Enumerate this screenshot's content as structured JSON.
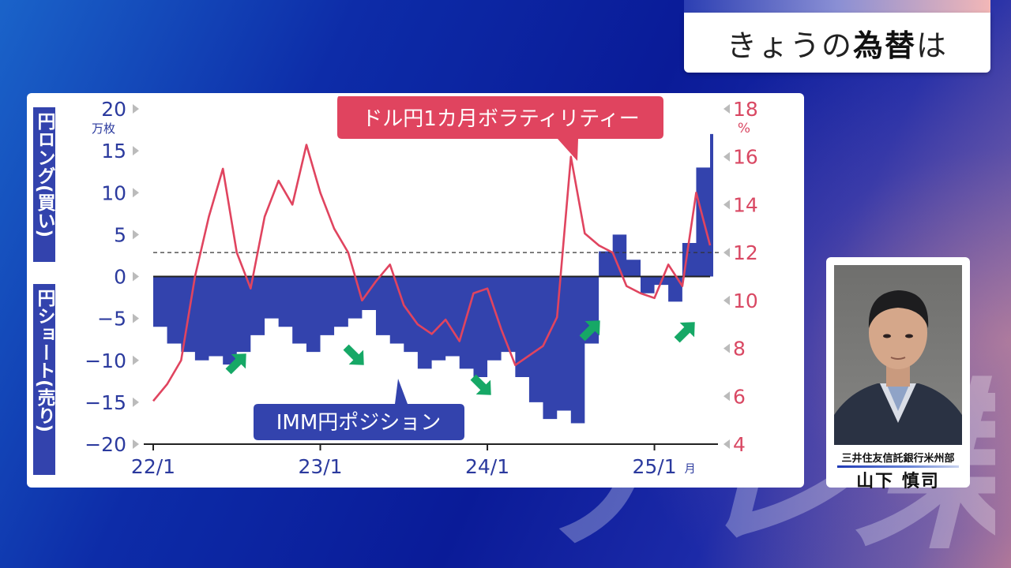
{
  "header": {
    "title_prefix": "きょうの",
    "title_bold": "為替",
    "title_suffix": "は"
  },
  "watermark": "テレ東",
  "speaker": {
    "affiliation": "三井住友信託銀行米州部",
    "name": "山下 慎司"
  },
  "colors": {
    "position_fill": "#3343ad",
    "volatility_line": "#e0445f",
    "long_short_label_bg": "#3343ad",
    "arrow": "#16a866"
  },
  "chart_data": {
    "type": "area",
    "x_ticks": [
      "22/1",
      "23/1",
      "24/1",
      "25/1"
    ],
    "x_unit": "月",
    "left_axis": {
      "ticks": [
        "20",
        "15",
        "10",
        "5",
        "0",
        "−5",
        "−10",
        "−15",
        "−20"
      ],
      "unit": "万枚",
      "range": [
        -20,
        20
      ],
      "label_long": "円ロング(買い)",
      "label_short": "円ショート(売り)"
    },
    "right_axis": {
      "ticks": [
        "18",
        "16",
        "14",
        "12",
        "10",
        "8",
        "6",
        "4"
      ],
      "unit": "%",
      "range": [
        4,
        18
      ]
    },
    "reference_line_right": 12,
    "annotations": {
      "volatility": "ドル円1カ月ボラティリティー",
      "position": "IMM円ポジション"
    },
    "series": [
      {
        "name": "IMM円ポジション",
        "x": [
          2022.0,
          2022.083,
          2022.167,
          2022.25,
          2022.333,
          2022.417,
          2022.5,
          2022.583,
          2022.667,
          2022.75,
          2022.833,
          2022.917,
          2023.0,
          2023.083,
          2023.167,
          2023.25,
          2023.333,
          2023.417,
          2023.5,
          2023.583,
          2023.667,
          2023.75,
          2023.833,
          2023.917,
          2024.0,
          2024.083,
          2024.167,
          2024.25,
          2024.333,
          2024.417,
          2024.5,
          2024.583,
          2024.667,
          2024.75,
          2024.833,
          2024.917,
          2025.0,
          2025.083,
          2025.167,
          2025.25,
          2025.333
        ],
        "values": [
          -6,
          -8,
          -9,
          -10,
          -9.5,
          -10.5,
          -9,
          -7,
          -5,
          -6,
          -8,
          -9,
          -7,
          -6,
          -5,
          -4,
          -7,
          -8,
          -9,
          -11,
          -10,
          -9.5,
          -11,
          -12,
          -10,
          -9,
          -12,
          -15,
          -17,
          -16,
          -17.5,
          -8,
          3,
          5,
          2,
          -2,
          -1,
          -3,
          4,
          13,
          17
        ]
      },
      {
        "name": "ドル円1カ月ボラティリティー",
        "x": [
          2022.0,
          2022.083,
          2022.167,
          2022.25,
          2022.333,
          2022.417,
          2022.5,
          2022.583,
          2022.667,
          2022.75,
          2022.833,
          2022.917,
          2023.0,
          2023.083,
          2023.167,
          2023.25,
          2023.333,
          2023.417,
          2023.5,
          2023.583,
          2023.667,
          2023.75,
          2023.833,
          2023.917,
          2024.0,
          2024.083,
          2024.167,
          2024.25,
          2024.333,
          2024.417,
          2024.5,
          2024.583,
          2024.667,
          2024.75,
          2024.833,
          2024.917,
          2025.0,
          2025.083,
          2025.167,
          2025.25,
          2025.333
        ],
        "values": [
          5.8,
          6.5,
          7.5,
          11,
          13.5,
          15.5,
          12,
          10.5,
          13.5,
          15,
          14,
          16.5,
          14.5,
          13,
          12,
          10,
          10.8,
          11.5,
          9.8,
          9,
          8.6,
          9.2,
          8.3,
          10.3,
          10.5,
          8.8,
          7.3,
          7.7,
          8.1,
          9.3,
          16,
          12.8,
          12.3,
          12,
          10.6,
          10.3,
          10.1,
          11.5,
          10.6,
          14.5,
          12.3
        ]
      }
    ]
  }
}
